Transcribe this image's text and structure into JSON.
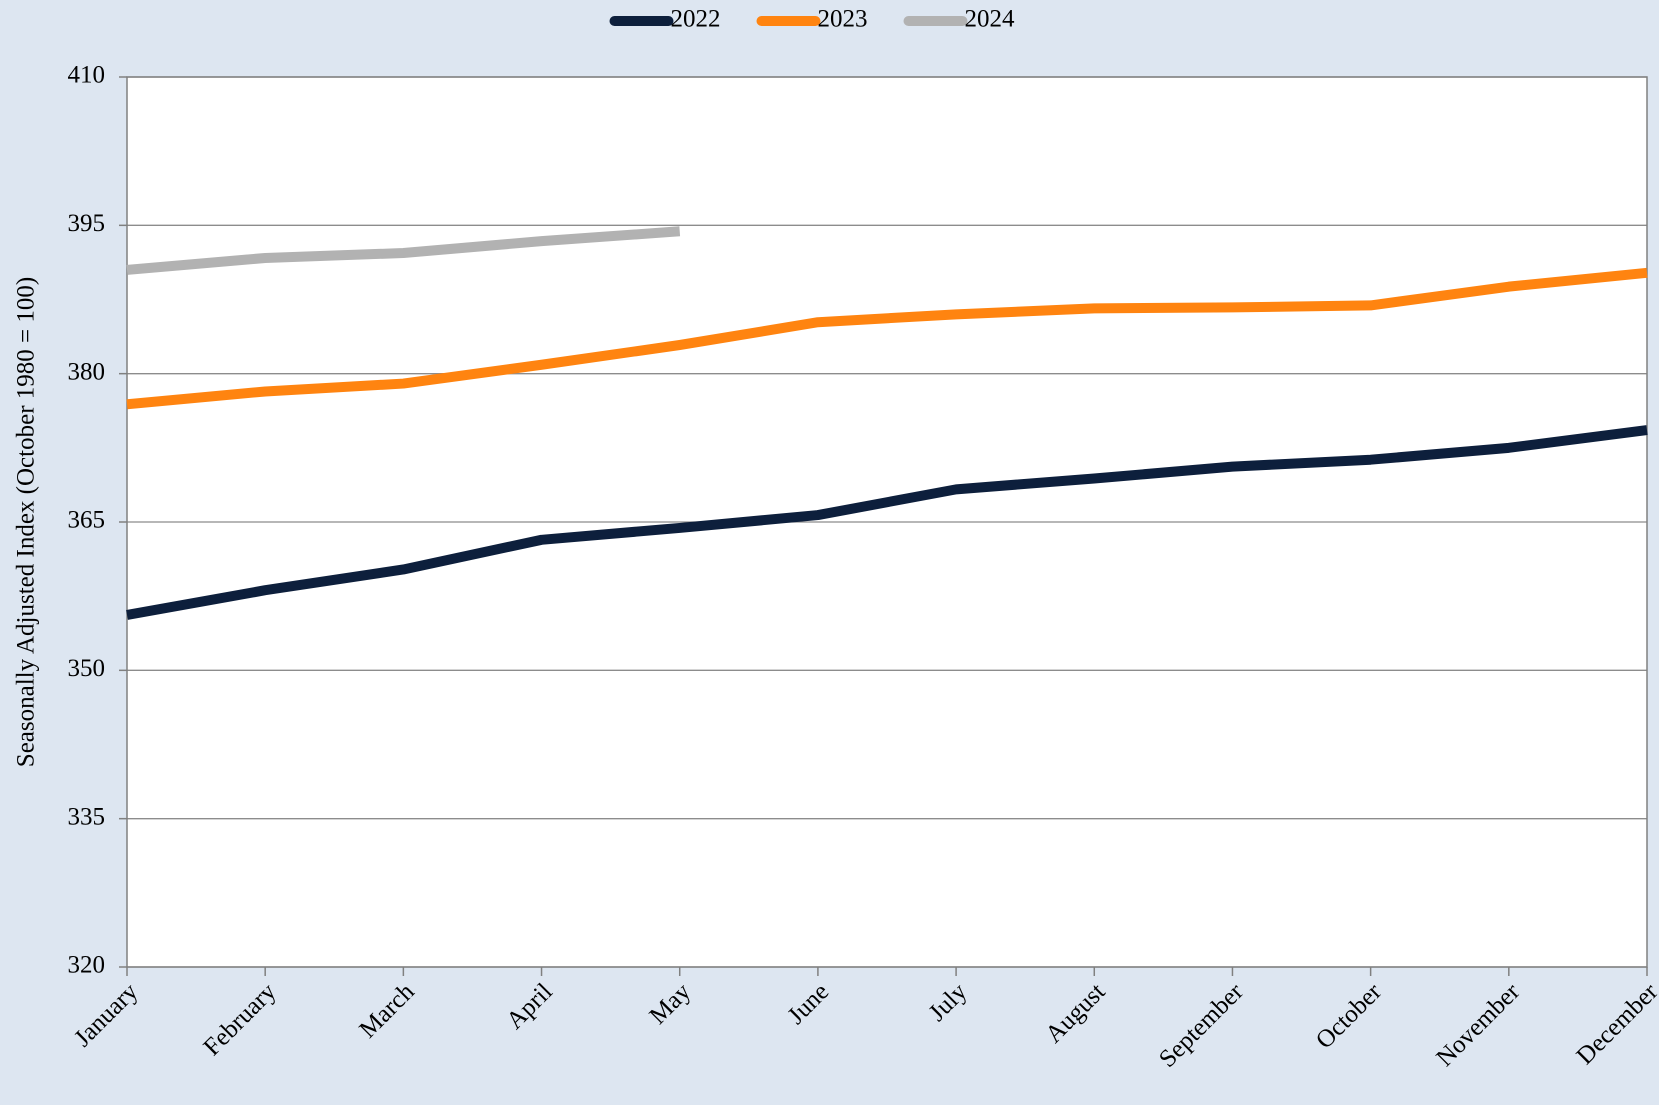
{
  "chart_data": {
    "type": "line",
    "y_label": "Seasonally Adjusted Index (October 1980 = 100)",
    "categories": [
      "January",
      "February",
      "March",
      "April",
      "May",
      "June",
      "July",
      "August",
      "September",
      "October",
      "November",
      "December"
    ],
    "series": [
      {
        "name": "2022",
        "color": "#0d1f3c",
        "values": [
          355.6,
          358.1,
          360.2,
          363.2,
          364.4,
          365.7,
          368.3,
          369.4,
          370.6,
          371.3,
          372.5,
          374.3
        ]
      },
      {
        "name": "2023",
        "color": "#ff8410",
        "values": [
          376.9,
          378.2,
          379.0,
          380.9,
          382.9,
          385.2,
          386.0,
          386.6,
          386.7,
          386.9,
          388.8,
          390.2
        ]
      },
      {
        "name": "2024",
        "color": "#b2b2b2",
        "values": [
          390.5,
          391.7,
          392.2,
          393.4,
          394.4,
          null,
          null,
          null,
          null,
          null,
          null,
          null
        ]
      }
    ],
    "ylim": [
      320,
      410
    ],
    "yticks": [
      320,
      335,
      350,
      365,
      380,
      395,
      410
    ],
    "grid": true,
    "legend": "top"
  }
}
